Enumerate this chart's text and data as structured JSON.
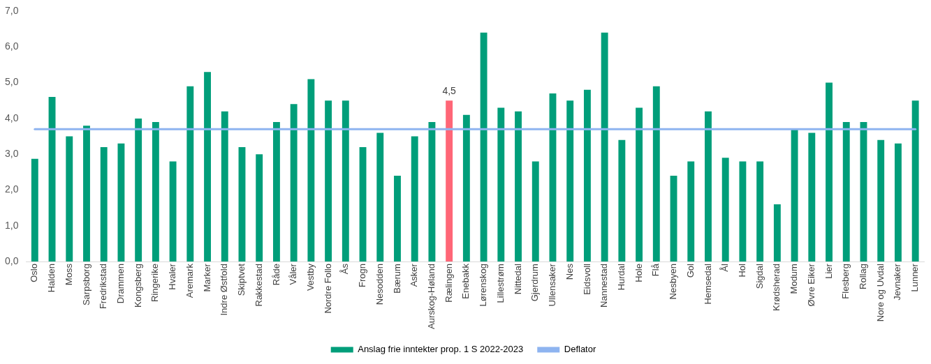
{
  "chart_data": {
    "type": "bar",
    "categories": [
      "Oslo",
      "Halden",
      "Moss",
      "Sarpsborg",
      "Fredrikstad",
      "Drammen",
      "Kongsberg",
      "Ringerike",
      "Hvaler",
      "Aremark",
      "Marker",
      "Indre Østfold",
      "Skiptvet",
      "Rakkestad",
      "Råde",
      "Våler",
      "Vestby",
      "Nordre Follo",
      "Ås",
      "Frogn",
      "Nesodden",
      "Bærum",
      "Asker",
      "Aurskog-Høland",
      "Rælingen",
      "Enebakk",
      "Lørenskog",
      "Lillestrøm",
      "Nittedal",
      "Gjerdrum",
      "Ullensaker",
      "Nes",
      "Eidsvoll",
      "Nannestad",
      "Hurdal",
      "Hole",
      "Flå",
      "Nesbyen",
      "Gol",
      "Hemsedal",
      "Ål",
      "Hol",
      "Sigdal",
      "Krødsherad",
      "Modum",
      "Øvre Eiker",
      "Lier",
      "Flesberg",
      "Rollag",
      "Nore og Uvdal",
      "Jevnaker",
      "Lunner"
    ],
    "series": [
      {
        "name": "Anslag frie inntekter prop. 1 S 2022-2023",
        "color": "#009e7a",
        "colors": [
          "#009e7a",
          "#009e7a",
          "#009e7a",
          "#009e7a",
          "#009e7a",
          "#009e7a",
          "#009e7a",
          "#009e7a",
          "#009e7a",
          "#009e7a",
          "#009e7a",
          "#009e7a",
          "#009e7a",
          "#009e7a",
          "#009e7a",
          "#009e7a",
          "#009e7a",
          "#009e7a",
          "#009e7a",
          "#009e7a",
          "#009e7a",
          "#009e7a",
          "#009e7a",
          "#009e7a",
          "#ff6677",
          "#009e7a",
          "#009e7a",
          "#009e7a",
          "#009e7a",
          "#009e7a",
          "#009e7a",
          "#009e7a",
          "#009e7a",
          "#009e7a",
          "#009e7a",
          "#009e7a",
          "#009e7a",
          "#009e7a",
          "#009e7a",
          "#009e7a",
          "#009e7a",
          "#009e7a",
          "#009e7a",
          "#009e7a",
          "#009e7a",
          "#009e7a",
          "#009e7a",
          "#009e7a",
          "#009e7a",
          "#009e7a",
          "#009e7a",
          "#009e7a"
        ],
        "values": [
          2.87,
          4.6,
          3.5,
          3.8,
          3.2,
          3.3,
          4.0,
          3.9,
          2.8,
          4.9,
          5.3,
          4.2,
          3.2,
          3.0,
          3.9,
          4.4,
          5.1,
          4.5,
          4.5,
          3.2,
          3.6,
          2.4,
          3.5,
          3.9,
          4.5,
          4.1,
          6.4,
          4.3,
          4.2,
          2.8,
          4.7,
          4.5,
          4.8,
          6.4,
          3.4,
          4.3,
          4.9,
          2.4,
          2.8,
          4.2,
          2.9,
          2.8,
          2.8,
          1.6,
          3.7,
          3.6,
          5.0,
          3.9,
          3.9,
          3.4,
          3.3,
          4.5
        ],
        "value_labels": [
          null,
          null,
          null,
          null,
          null,
          null,
          null,
          null,
          null,
          null,
          null,
          null,
          null,
          null,
          null,
          null,
          null,
          null,
          null,
          null,
          null,
          null,
          null,
          null,
          "4,5",
          null,
          null,
          null,
          null,
          null,
          null,
          null,
          null,
          null,
          null,
          null,
          null,
          null,
          null,
          null,
          null,
          null,
          null,
          null,
          null,
          null,
          null,
          null,
          null,
          null,
          null,
          null
        ]
      },
      {
        "name": "Deflator",
        "type": "line",
        "color": "#8eb4f0",
        "values": [
          3.7,
          3.7,
          3.7,
          3.7,
          3.7,
          3.7,
          3.7,
          3.7,
          3.7,
          3.7,
          3.7,
          3.7,
          3.7,
          3.7,
          3.7,
          3.7,
          3.7,
          3.7,
          3.7,
          3.7,
          3.7,
          3.7,
          3.7,
          3.7,
          3.7,
          3.7,
          3.7,
          3.7,
          3.7,
          3.7,
          3.7,
          3.7,
          3.7,
          3.7,
          3.7,
          3.7,
          3.7,
          3.7,
          3.7,
          3.7,
          3.7,
          3.7,
          3.7,
          3.7,
          3.7,
          3.7,
          3.7,
          3.7,
          3.7,
          3.7,
          3.7,
          3.7
        ]
      }
    ],
    "ylim": [
      0,
      7
    ],
    "yticks": [
      {
        "value": 0,
        "label": "0,0"
      },
      {
        "value": 1,
        "label": "1,0"
      },
      {
        "value": 2,
        "label": "2,0"
      },
      {
        "value": 3,
        "label": "3,0"
      },
      {
        "value": 4,
        "label": "4,0"
      },
      {
        "value": 5,
        "label": "5,0"
      },
      {
        "value": 6,
        "label": "6,0"
      },
      {
        "value": 7,
        "label": "7,0"
      }
    ],
    "grid": false,
    "legend": "bottom",
    "marker": "none",
    "line_style": "solid"
  }
}
